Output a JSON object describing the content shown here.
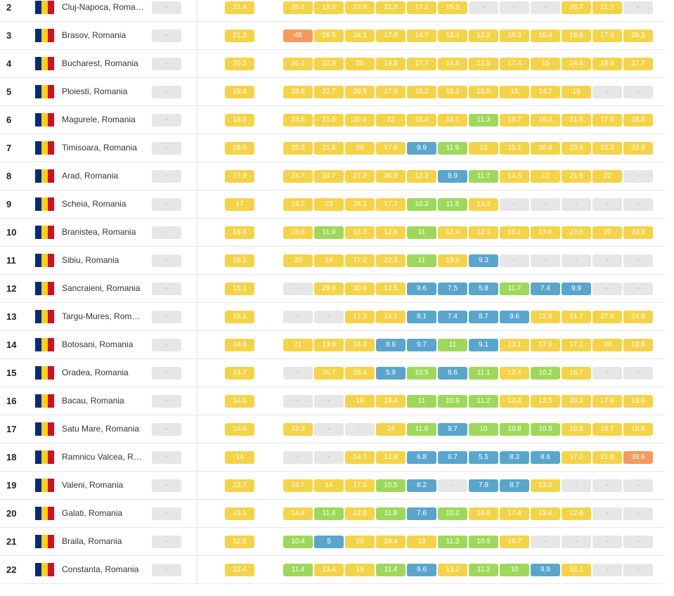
{
  "flag_colors": [
    "#002b7f",
    "#fcd116",
    "#ce1126"
  ],
  "no_data": "-",
  "rows": [
    {
      "rank": "2",
      "city": "Cluj-Napoca, Romania",
      "avg": "21.4",
      "months": [
        "26.1",
        "19.2",
        "22.6",
        "21.8",
        "17.1",
        "15.9",
        "-",
        "-",
        "-",
        "26.7",
        "21.7",
        "-"
      ]
    },
    {
      "rank": "3",
      "city": "Brasov, Romania",
      "avg": "21.3",
      "months": [
        "48",
        "26.5",
        "24.1",
        "17.8",
        "14.7",
        "13.4",
        "12.2",
        "16.3",
        "16.4",
        "19.8",
        "17.4",
        "26.3"
      ]
    },
    {
      "rank": "4",
      "city": "Bucharest, Romania",
      "avg": "20.3",
      "months": [
        "26.1",
        "22.9",
        "26",
        "19.8",
        "17.7",
        "14.8",
        "12.8",
        "17.4",
        "15",
        "24.4",
        "18.9",
        "27.7"
      ]
    },
    {
      "rank": "5",
      "city": "Ploiesti, Romania",
      "avg": "19.4",
      "months": [
        "28.5",
        "22.7",
        "29.5",
        "17.9",
        "15.2",
        "15.3",
        "15.5",
        "15",
        "14.7",
        "19",
        "-",
        "-"
      ]
    },
    {
      "rank": "6",
      "city": "Magurele, Romania",
      "avg": "18.9",
      "months": [
        "24.5",
        "21.5",
        "20.4",
        "22",
        "16.4",
        "14.1",
        "11.3",
        "16.7",
        "16.4",
        "21.9",
        "17.9",
        "28.8"
      ]
    },
    {
      "rank": "7",
      "city": "Timisoara, Romania",
      "avg": "18.6",
      "months": [
        "25.9",
        "21.6",
        "26",
        "17.8",
        "9.9",
        "11.9",
        "12",
        "15.1",
        "16.6",
        "23.4",
        "22.3",
        "22.9"
      ]
    },
    {
      "rank": "8",
      "city": "Arad, Romania",
      "avg": "17.9",
      "months": [
        "24.7",
        "24.7",
        "27.9",
        "26.5",
        "12.3",
        "8.9",
        "11.7",
        "14.5",
        "12",
        "21.5",
        "22",
        "-"
      ]
    },
    {
      "rank": "9",
      "city": "Scheia, Romania",
      "avg": "17",
      "months": [
        "19.2",
        "23",
        "24.1",
        "17.2",
        "10.2",
        "11.8",
        "13.2",
        "-",
        "-",
        "-",
        "-",
        "-"
      ]
    },
    {
      "rank": "10",
      "city": "Branistea, Romania",
      "avg": "16.8",
      "months": [
        "15.6",
        "11.9",
        "15.3",
        "12.6",
        "11",
        "12.4",
        "12.1",
        "16.1",
        "17.6",
        "23.5",
        "20",
        "33.9"
      ]
    },
    {
      "rank": "11",
      "city": "Sibiu, Romania",
      "avg": "16.1",
      "months": [
        "20",
        "14",
        "17.2",
        "22.3",
        "11",
        "13.9",
        "9.3",
        "-",
        "-",
        "-",
        "-",
        "-"
      ]
    },
    {
      "rank": "12",
      "city": "Sancraieni, Romania",
      "avg": "15.1",
      "months": [
        "-",
        "29.9",
        "30.6",
        "13.5",
        "9.6",
        "7.5",
        "5.8",
        "11.7",
        "7.4",
        "9.9",
        "-",
        "-"
      ]
    },
    {
      "rank": "13",
      "city": "Targu-Mures, Romania",
      "avg": "15.1",
      "months": [
        "-",
        "-",
        "17.3",
        "14.1",
        "8.1",
        "7.4",
        "8.7",
        "9.6",
        "12.6",
        "21.7",
        "27.6",
        "24.9"
      ]
    },
    {
      "rank": "14",
      "city": "Botosani, Romania",
      "avg": "14.8",
      "months": [
        "21",
        "13.9",
        "16.2",
        "8.6",
        "9.7",
        "11",
        "9.1",
        "13.1",
        "17.6",
        "17.1",
        "20",
        "18.8"
      ]
    },
    {
      "rank": "15",
      "city": "Oradea, Romania",
      "avg": "14.7",
      "months": [
        "-",
        "26.7",
        "28.4",
        "5.9",
        "10.5",
        "8.6",
        "11.1",
        "12.4",
        "10.2",
        "19.7",
        "-",
        "-"
      ]
    },
    {
      "rank": "16",
      "city": "Bacau, Romania",
      "avg": "14.6",
      "months": [
        "-",
        "-",
        "16",
        "18.4",
        "11",
        "10.9",
        "11.2",
        "13.4",
        "12.5",
        "20.2",
        "17.9",
        "19.6"
      ]
    },
    {
      "rank": "17",
      "city": "Satu Mare, Romania",
      "avg": "14.4",
      "months": [
        "12.3",
        "-",
        "-",
        "24",
        "11.6",
        "9.7",
        "10",
        "10.8",
        "10.5",
        "18.9",
        "19.7",
        "16.6"
      ]
    },
    {
      "rank": "18",
      "city": "Ramnicu Valcea, Romania",
      "avg": "14",
      "months": [
        "-",
        "-",
        "14.7",
        "12.8",
        "6.8",
        "6.7",
        "5.5",
        "8.3",
        "8.6",
        "17.2",
        "21.9",
        "38.6"
      ]
    },
    {
      "rank": "19",
      "city": "Valeni, Romania",
      "avg": "13.7",
      "months": [
        "24.7",
        "14",
        "17.5",
        "10.5",
        "8.2",
        "-",
        "7.8",
        "8.7",
        "13.8",
        "-",
        "-",
        "-"
      ]
    },
    {
      "rank": "20",
      "city": "Galati, Romania",
      "avg": "13.1",
      "months": [
        "14.4",
        "11.4",
        "12.9",
        "11.8",
        "7.6",
        "10.2",
        "16.8",
        "17.4",
        "13.8",
        "12.8",
        "-",
        "-"
      ]
    },
    {
      "rank": "21",
      "city": "Braila, Romania",
      "avg": "12.5",
      "months": [
        "10.4",
        "5",
        "20",
        "16.4",
        "13",
        "11.3",
        "10.9",
        "16.7",
        "-",
        "-",
        "-",
        "-"
      ]
    },
    {
      "rank": "22",
      "city": "Constanta, Romania",
      "avg": "12.4",
      "months": [
        "11.4",
        "13.4",
        "18",
        "11.4",
        "9.6",
        "13.2",
        "11.2",
        "10",
        "9.9",
        "18.1",
        "-",
        "-"
      ]
    }
  ]
}
